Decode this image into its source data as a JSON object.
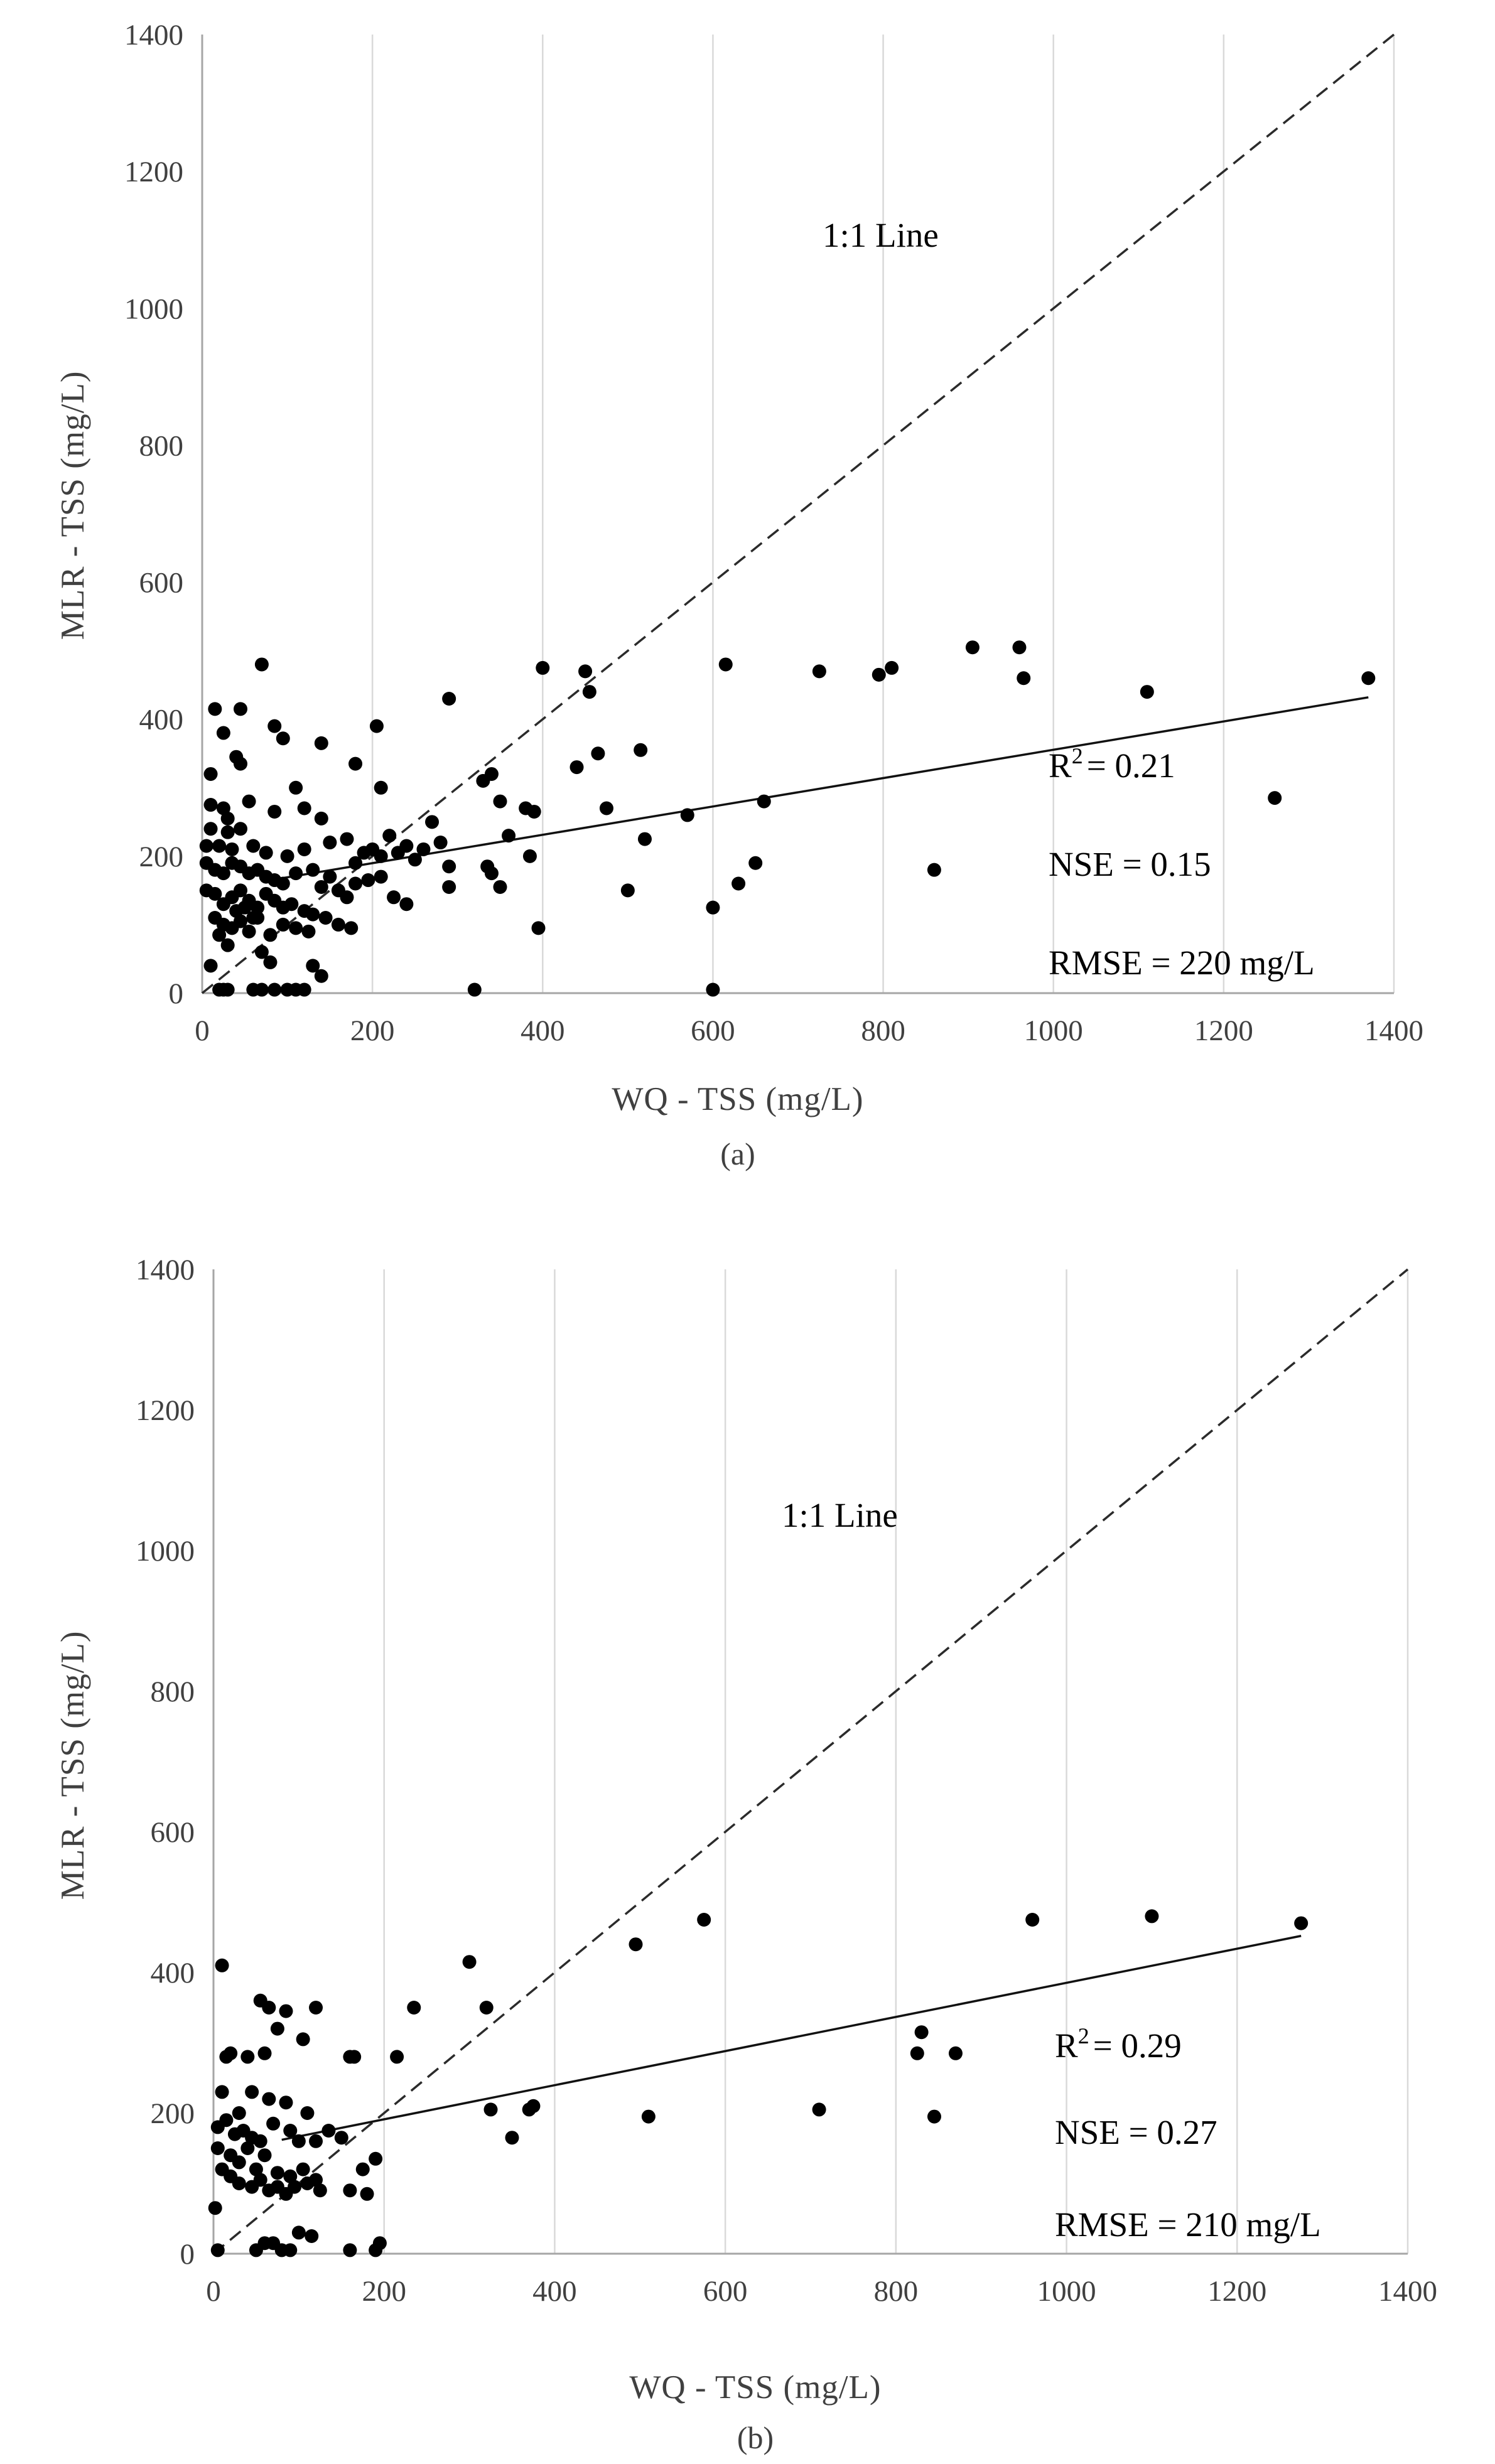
{
  "chart_data": [
    {
      "type": "scatter",
      "panel_label": "(a)",
      "xlabel": "WQ - TSS  (mg/L)",
      "ylabel": "MLR - TSS  (mg/L)",
      "xlim": [
        0,
        1400
      ],
      "ylim": [
        0,
        1400
      ],
      "x_ticks": [
        "0",
        "200",
        "400",
        "600",
        "800",
        "1000",
        "1200",
        "1400"
      ],
      "y_ticks": [
        "0",
        "200",
        "400",
        "600",
        "800",
        "1000",
        "1200",
        "1400"
      ],
      "grid": "vertical",
      "annotations": {
        "line_label": "1:1 Line",
        "r2_base": "R",
        "r2_sup": "2",
        "r2_value": "= 0.21",
        "nse": "NSE = 0.15",
        "rmse": "RMSE = 220 mg/L"
      },
      "reference_line": {
        "name": "1:1 Line",
        "x": [
          0,
          1400
        ],
        "y": [
          0,
          1400
        ]
      },
      "fit_line": {
        "x": [
          80,
          1370
        ],
        "y": [
          165,
          432
        ]
      },
      "points": [
        [
          15,
          415
        ],
        [
          70,
          480
        ],
        [
          45,
          415
        ],
        [
          85,
          390
        ],
        [
          140,
          365
        ],
        [
          95,
          372
        ],
        [
          205,
          390
        ],
        [
          210,
          300
        ],
        [
          25,
          380
        ],
        [
          40,
          345
        ],
        [
          45,
          335
        ],
        [
          180,
          335
        ],
        [
          10,
          320
        ],
        [
          10,
          275
        ],
        [
          25,
          270
        ],
        [
          30,
          255
        ],
        [
          55,
          280
        ],
        [
          120,
          270
        ],
        [
          10,
          240
        ],
        [
          30,
          235
        ],
        [
          45,
          240
        ],
        [
          85,
          265
        ],
        [
          110,
          300
        ],
        [
          140,
          255
        ],
        [
          5,
          215
        ],
        [
          20,
          215
        ],
        [
          35,
          210
        ],
        [
          60,
          215
        ],
        [
          75,
          205
        ],
        [
          100,
          200
        ],
        [
          120,
          210
        ],
        [
          150,
          220
        ],
        [
          170,
          225
        ],
        [
          200,
          210
        ],
        [
          210,
          200
        ],
        [
          220,
          230
        ],
        [
          230,
          205
        ],
        [
          240,
          215
        ],
        [
          250,
          195
        ],
        [
          260,
          210
        ],
        [
          270,
          250
        ],
        [
          280,
          220
        ],
        [
          190,
          205
        ],
        [
          180,
          190
        ],
        [
          5,
          190
        ],
        [
          15,
          180
        ],
        [
          25,
          175
        ],
        [
          35,
          190
        ],
        [
          45,
          185
        ],
        [
          55,
          175
        ],
        [
          65,
          180
        ],
        [
          75,
          170
        ],
        [
          85,
          165
        ],
        [
          95,
          160
        ],
        [
          110,
          175
        ],
        [
          130,
          180
        ],
        [
          140,
          155
        ],
        [
          150,
          170
        ],
        [
          160,
          150
        ],
        [
          170,
          140
        ],
        [
          180,
          160
        ],
        [
          195,
          165
        ],
        [
          210,
          170
        ],
        [
          225,
          140
        ],
        [
          240,
          130
        ],
        [
          5,
          150
        ],
        [
          15,
          145
        ],
        [
          25,
          130
        ],
        [
          35,
          140
        ],
        [
          45,
          150
        ],
        [
          55,
          135
        ],
        [
          65,
          125
        ],
        [
          75,
          145
        ],
        [
          85,
          135
        ],
        [
          95,
          125
        ],
        [
          105,
          130
        ],
        [
          120,
          120
        ],
        [
          130,
          115
        ],
        [
          145,
          110
        ],
        [
          160,
          100
        ],
        [
          175,
          95
        ],
        [
          15,
          110
        ],
        [
          25,
          100
        ],
        [
          35,
          95
        ],
        [
          45,
          105
        ],
        [
          55,
          90
        ],
        [
          65,
          110
        ],
        [
          80,
          85
        ],
        [
          95,
          100
        ],
        [
          110,
          95
        ],
        [
          125,
          90
        ],
        [
          40,
          120
        ],
        [
          50,
          125
        ],
        [
          60,
          110
        ],
        [
          70,
          60
        ],
        [
          80,
          45
        ],
        [
          130,
          40
        ],
        [
          140,
          25
        ],
        [
          20,
          85
        ],
        [
          30,
          70
        ],
        [
          10,
          40
        ],
        [
          20,
          5
        ],
        [
          25,
          5
        ],
        [
          30,
          5
        ],
        [
          70,
          5
        ],
        [
          100,
          5
        ],
        [
          110,
          5
        ],
        [
          120,
          5
        ],
        [
          320,
          5
        ],
        [
          600,
          5
        ],
        [
          60,
          5
        ],
        [
          85,
          5
        ],
        [
          290,
          430
        ],
        [
          330,
          310
        ],
        [
          340,
          320
        ],
        [
          350,
          280
        ],
        [
          360,
          230
        ],
        [
          335,
          185
        ],
        [
          340,
          175
        ],
        [
          350,
          155
        ],
        [
          380,
          270
        ],
        [
          385,
          200
        ],
        [
          390,
          265
        ],
        [
          395,
          95
        ],
        [
          400,
          475
        ],
        [
          440,
          330
        ],
        [
          450,
          470
        ],
        [
          455,
          440
        ],
        [
          465,
          350
        ],
        [
          475,
          270
        ],
        [
          500,
          150
        ],
        [
          515,
          355
        ],
        [
          520,
          225
        ],
        [
          570,
          260
        ],
        [
          600,
          125
        ],
        [
          615,
          480
        ],
        [
          630,
          160
        ],
        [
          650,
          190
        ],
        [
          660,
          280
        ],
        [
          725,
          470
        ],
        [
          795,
          465
        ],
        [
          810,
          475
        ],
        [
          860,
          180
        ],
        [
          905,
          505
        ],
        [
          960,
          505
        ],
        [
          965,
          460
        ],
        [
          1110,
          440
        ],
        [
          1260,
          285
        ],
        [
          1370,
          460
        ],
        [
          290,
          185
        ],
        [
          290,
          155
        ]
      ]
    },
    {
      "type": "scatter",
      "panel_label": "(b)",
      "xlabel": "WQ - TSS  (mg/L)",
      "ylabel": "MLR - TSS  (mg/L)",
      "xlim": [
        0,
        1400
      ],
      "ylim": [
        0,
        1400
      ],
      "x_ticks": [
        "0",
        "200",
        "400",
        "600",
        "800",
        "1000",
        "1200",
        "1400"
      ],
      "y_ticks": [
        "0",
        "200",
        "400",
        "600",
        "800",
        "1000",
        "1200",
        "1400"
      ],
      "grid": "vertical",
      "annotations": {
        "line_label": "1:1 Line",
        "r2_base": "R",
        "r2_sup": "2",
        "r2_value": "= 0.29",
        "nse": "NSE = 0.27",
        "rmse": "RMSE = 210 mg/L"
      },
      "reference_line": {
        "name": "1:1 Line",
        "x": [
          0,
          1400
        ],
        "y": [
          0,
          1400
        ]
      },
      "fit_line": {
        "x": [
          80,
          1275
        ],
        "y": [
          162,
          452
        ]
      },
      "points": [
        [
          10,
          410
        ],
        [
          55,
          360
        ],
        [
          65,
          350
        ],
        [
          120,
          350
        ],
        [
          20,
          285
        ],
        [
          15,
          280
        ],
        [
          40,
          280
        ],
        [
          60,
          285
        ],
        [
          85,
          345
        ],
        [
          105,
          305
        ],
        [
          75,
          320
        ],
        [
          160,
          280
        ],
        [
          165,
          280
        ],
        [
          10,
          230
        ],
        [
          30,
          200
        ],
        [
          45,
          230
        ],
        [
          65,
          220
        ],
        [
          85,
          215
        ],
        [
          110,
          200
        ],
        [
          5,
          180
        ],
        [
          15,
          190
        ],
        [
          25,
          170
        ],
        [
          35,
          175
        ],
        [
          45,
          165
        ],
        [
          55,
          160
        ],
        [
          70,
          185
        ],
        [
          90,
          175
        ],
        [
          100,
          160
        ],
        [
          120,
          160
        ],
        [
          5,
          150
        ],
        [
          20,
          140
        ],
        [
          30,
          130
        ],
        [
          40,
          150
        ],
        [
          50,
          120
        ],
        [
          60,
          140
        ],
        [
          75,
          115
        ],
        [
          90,
          110
        ],
        [
          105,
          120
        ],
        [
          120,
          105
        ],
        [
          135,
          175
        ],
        [
          150,
          165
        ],
        [
          10,
          120
        ],
        [
          20,
          110
        ],
        [
          30,
          100
        ],
        [
          45,
          95
        ],
        [
          55,
          105
        ],
        [
          65,
          90
        ],
        [
          75,
          95
        ],
        [
          85,
          85
        ],
        [
          95,
          95
        ],
        [
          110,
          100
        ],
        [
          125,
          90
        ],
        [
          160,
          90
        ],
        [
          175,
          120
        ],
        [
          180,
          85
        ],
        [
          190,
          135
        ],
        [
          2,
          65
        ],
        [
          5,
          5
        ],
        [
          50,
          5
        ],
        [
          60,
          15
        ],
        [
          70,
          15
        ],
        [
          80,
          5
        ],
        [
          90,
          5
        ],
        [
          100,
          30
        ],
        [
          115,
          25
        ],
        [
          160,
          5
        ],
        [
          190,
          5
        ],
        [
          195,
          15
        ],
        [
          215,
          280
        ],
        [
          235,
          350
        ],
        [
          300,
          415
        ],
        [
          320,
          350
        ],
        [
          325,
          205
        ],
        [
          350,
          165
        ],
        [
          370,
          205
        ],
        [
          375,
          210
        ],
        [
          495,
          440
        ],
        [
          510,
          195
        ],
        [
          575,
          475
        ],
        [
          710,
          205
        ],
        [
          825,
          285
        ],
        [
          830,
          315
        ],
        [
          845,
          195
        ],
        [
          870,
          285
        ],
        [
          960,
          475
        ],
        [
          1100,
          480
        ],
        [
          1275,
          470
        ]
      ]
    }
  ]
}
